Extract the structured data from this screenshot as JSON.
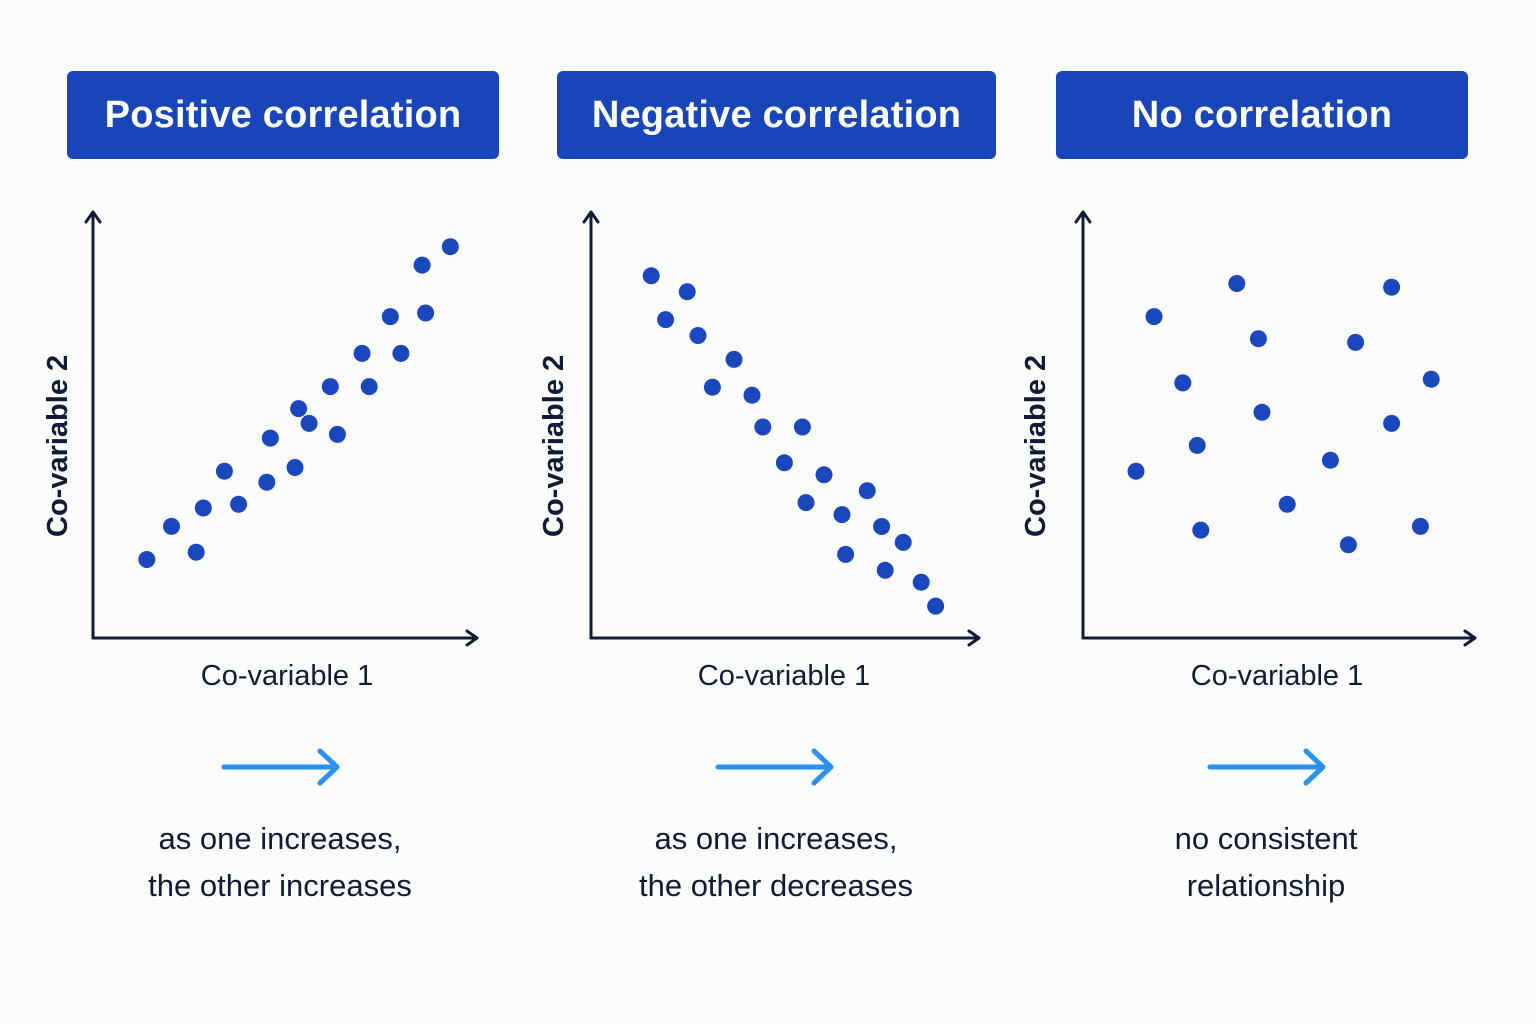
{
  "colors": {
    "header_bg": "#1846b8",
    "point": "#1b47bd",
    "axis": "#111b36",
    "arrow": "#2b90ee"
  },
  "arrow_icon": "right-arrow-icon",
  "chart_data": [
    {
      "type": "scatter",
      "title": "Positive correlation",
      "xlabel": "Co-variable 1",
      "ylabel": "Co-variable 2",
      "xlim": [
        0,
        100
      ],
      "ylim": [
        0,
        100
      ],
      "grid": false,
      "caption": [
        "as one increases,",
        "the other increases"
      ],
      "points": [
        [
          9,
          11
        ],
        [
          16,
          20
        ],
        [
          23,
          13
        ],
        [
          25,
          25
        ],
        [
          31,
          35
        ],
        [
          35,
          26
        ],
        [
          43,
          32
        ],
        [
          44,
          44
        ],
        [
          51,
          36
        ],
        [
          52,
          52
        ],
        [
          55,
          48
        ],
        [
          61,
          58
        ],
        [
          63,
          45
        ],
        [
          70,
          67
        ],
        [
          72,
          58
        ],
        [
          78,
          77
        ],
        [
          81,
          67
        ],
        [
          87,
          91
        ],
        [
          88,
          78
        ],
        [
          95,
          96
        ]
      ]
    },
    {
      "type": "scatter",
      "title": "Negative correlation",
      "xlabel": "Co-variable 1",
      "ylabel": "Co-variable 2",
      "xlim": [
        0,
        100
      ],
      "ylim": [
        0,
        100
      ],
      "grid": false,
      "caption": [
        "as one increases,",
        "the other decreases"
      ],
      "points": [
        [
          12,
          89
        ],
        [
          16,
          78
        ],
        [
          22,
          85
        ],
        [
          25,
          74
        ],
        [
          29,
          61
        ],
        [
          35,
          68
        ],
        [
          40,
          59
        ],
        [
          43,
          51
        ],
        [
          49,
          42
        ],
        [
          54,
          51
        ],
        [
          55,
          32
        ],
        [
          60,
          39
        ],
        [
          65,
          29
        ],
        [
          66,
          19
        ],
        [
          72,
          35
        ],
        [
          76,
          26
        ],
        [
          77,
          15
        ],
        [
          82,
          22
        ],
        [
          87,
          12
        ],
        [
          91,
          6
        ]
      ]
    },
    {
      "type": "scatter",
      "title": "No correlation",
      "xlabel": "Co-variable 1",
      "ylabel": "Co-variable 2",
      "xlim": [
        0,
        100
      ],
      "ylim": [
        0,
        100
      ],
      "grid": false,
      "caption": [
        "no consistent",
        "relationship"
      ],
      "points": [
        [
          10,
          35
        ],
        [
          15,
          77
        ],
        [
          23,
          59
        ],
        [
          27,
          42
        ],
        [
          28,
          19
        ],
        [
          38,
          86
        ],
        [
          44,
          71
        ],
        [
          45,
          51
        ],
        [
          52,
          26
        ],
        [
          64,
          38
        ],
        [
          69,
          15
        ],
        [
          71,
          70
        ],
        [
          81,
          85
        ],
        [
          81,
          48
        ],
        [
          89,
          20
        ],
        [
          92,
          60
        ]
      ]
    }
  ]
}
